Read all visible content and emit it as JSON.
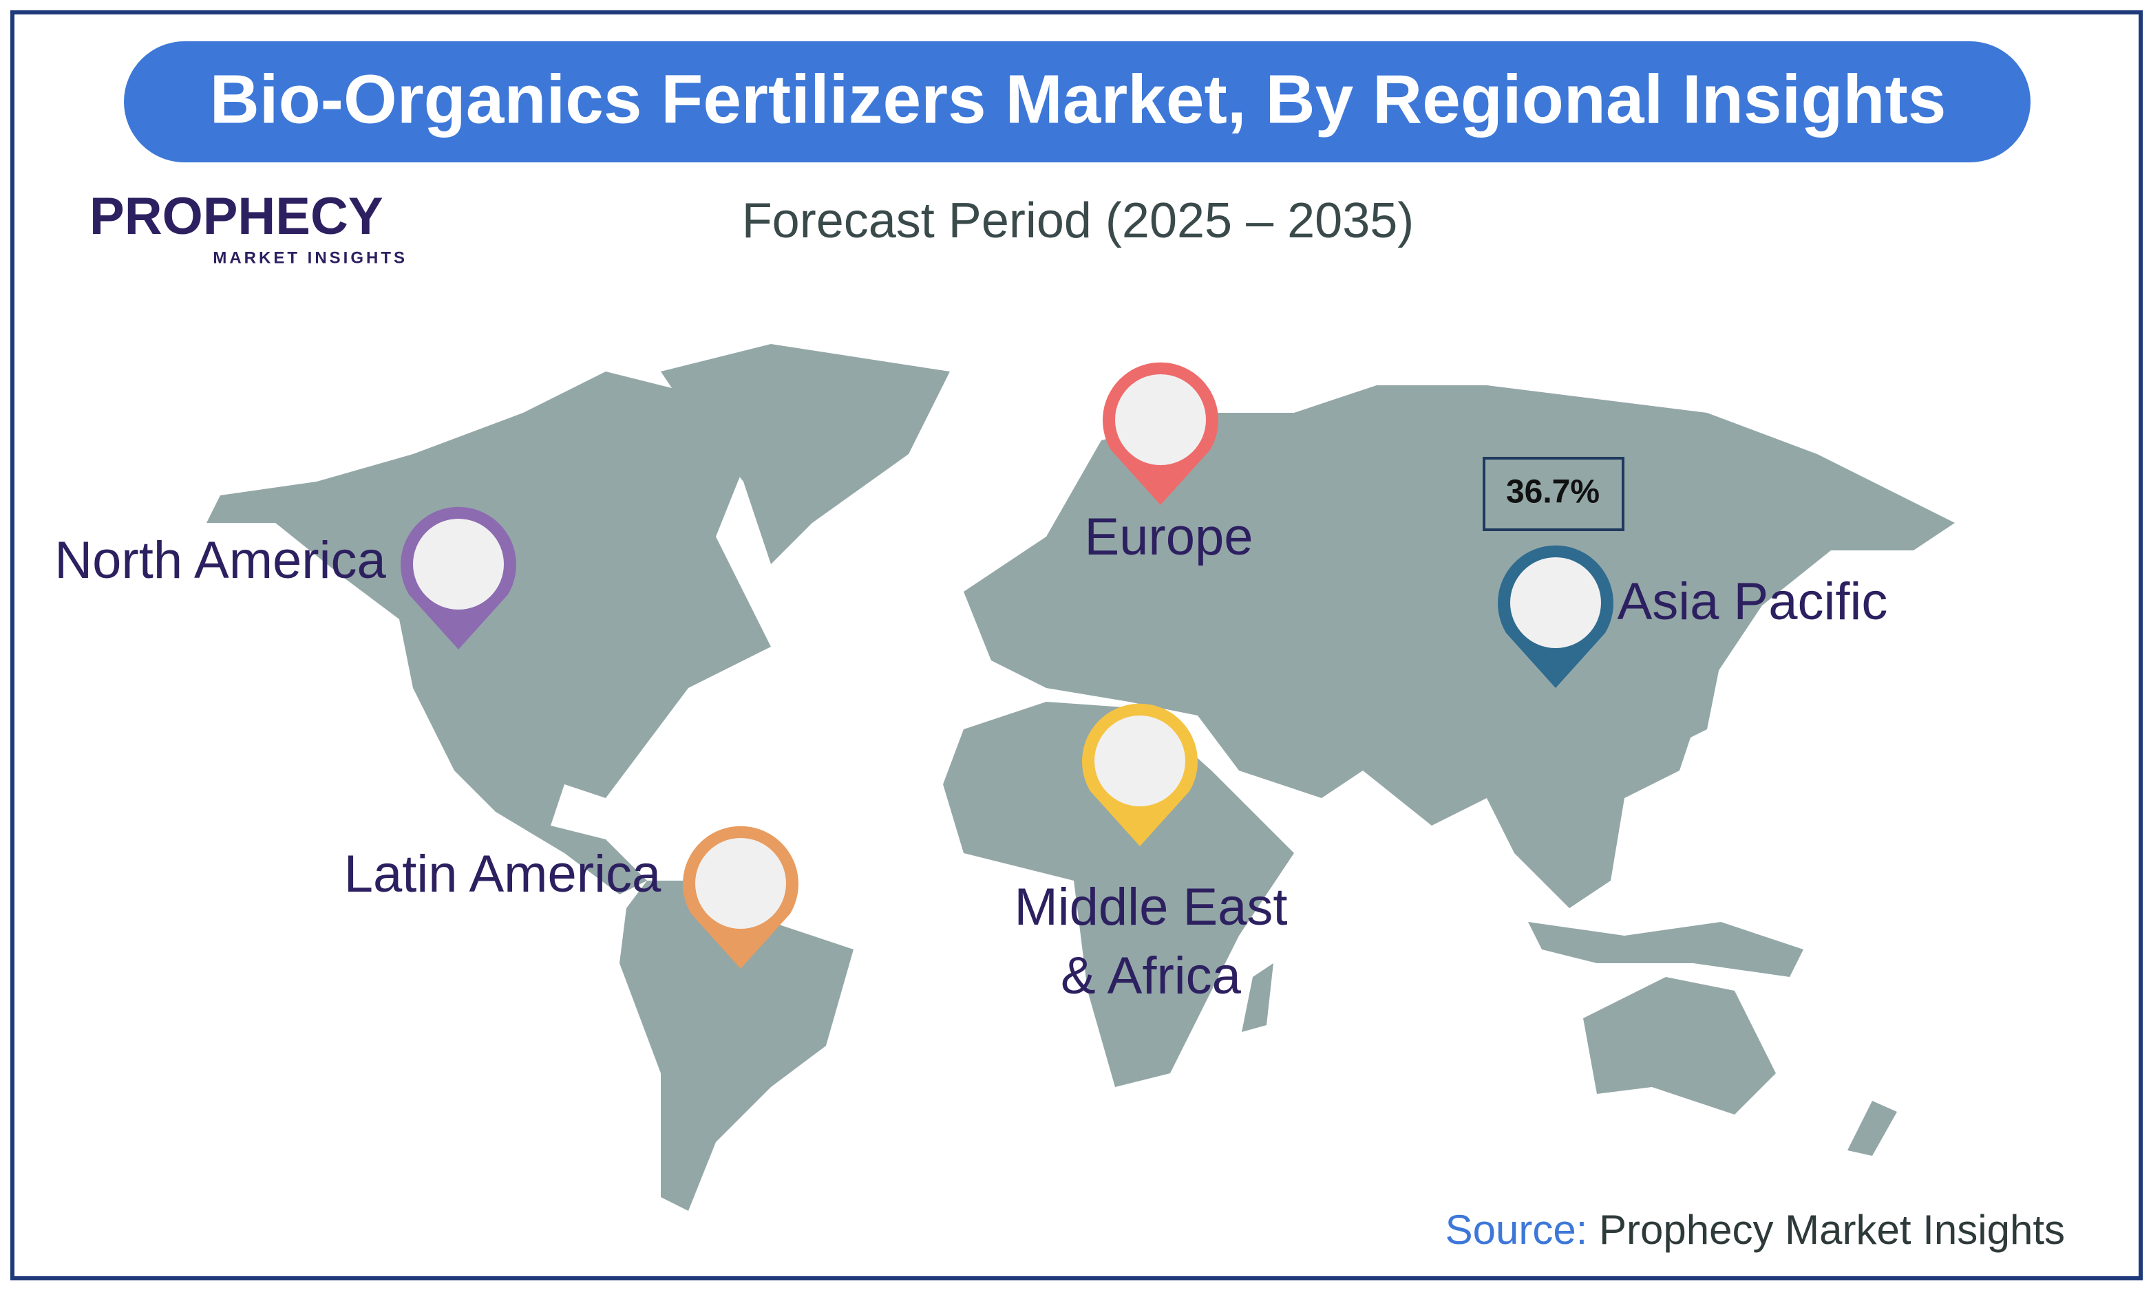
{
  "title": "Bio-Organics Fertilizers Market, By Regional Insights",
  "subtitle": "Forecast Period (2025 – 2035)",
  "logo": {
    "name": "PROPHECY",
    "tagline": "MARKET INSIGHTS"
  },
  "regions": [
    {
      "label": "North America"
    },
    {
      "label": "Europe"
    },
    {
      "label": "Asia Pacific",
      "value": "36.7%"
    },
    {
      "label": "Latin America"
    },
    {
      "lines": [
        "Middle East",
        "& Africa"
      ]
    }
  ],
  "source": {
    "label": "Source:",
    "text": "Prophecy Market Insights"
  }
}
